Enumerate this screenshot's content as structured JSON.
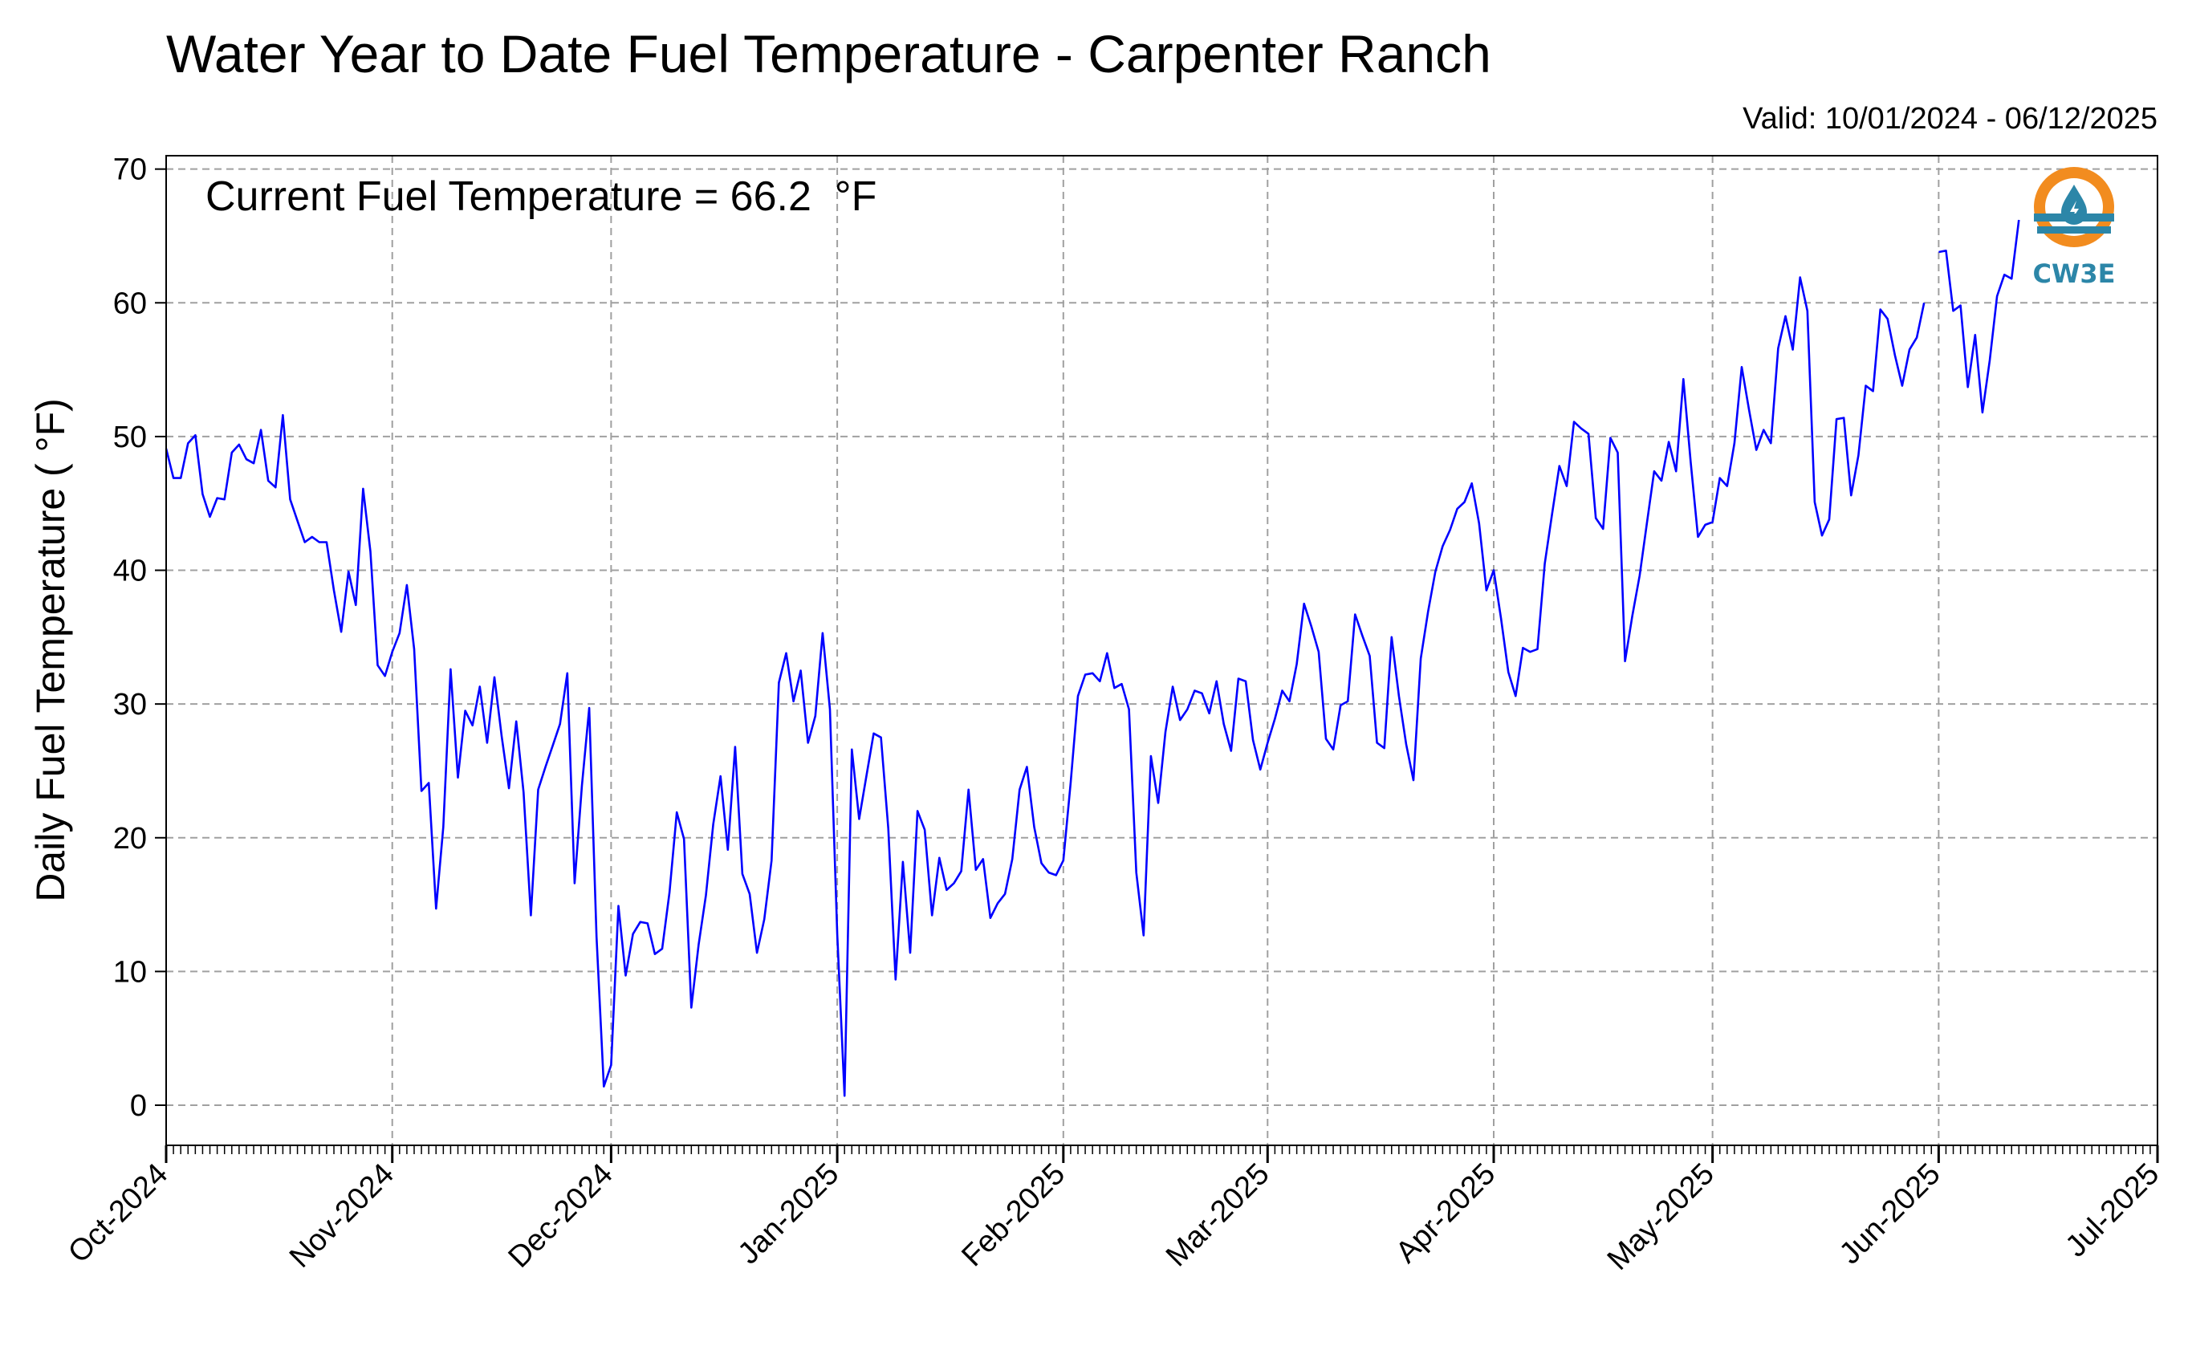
{
  "title": "Water Year to Date Fuel Temperature - Carpenter Ranch",
  "valid_label": "Valid: 10/01/2024 - 06/12/2025",
  "annotation": "Current Fuel Temperature = 66.2  °F",
  "logo": {
    "text": "CW3E",
    "colors": {
      "ring": "#f28c1f",
      "wave": "#2c86a8",
      "drop": "#2c86a8"
    }
  },
  "colors": {
    "line": "#0000ff",
    "grid": "#a0a0a0",
    "axis": "#000000"
  },
  "chart_data": {
    "type": "line",
    "title": "Water Year to Date Fuel Temperature - Carpenter Ranch",
    "xlabel": "",
    "ylabel": "Daily Fuel Temperature ( °F)",
    "xlim": [
      "2024-10-01",
      "2025-07-01"
    ],
    "ylim": [
      -3,
      71
    ],
    "y_ticks": [
      0,
      10,
      20,
      30,
      40,
      50,
      60,
      70
    ],
    "x_tick_labels": [
      "Oct-2024",
      "Nov-2024",
      "Dec-2024",
      "Jan-2025",
      "Feb-2025",
      "Mar-2025",
      "Apr-2025",
      "May-2025",
      "Jun-2025",
      "Jul-2025"
    ],
    "x_ticks": [
      "2024-10-01",
      "2024-11-01",
      "2024-12-01",
      "2025-01-01",
      "2025-02-01",
      "2025-03-01",
      "2025-04-01",
      "2025-05-01",
      "2025-06-01",
      "2025-07-01"
    ],
    "grid": true,
    "series": [
      {
        "start_date": "2024-10-01",
        "values": [
          49.1,
          46.9,
          46.9,
          49.5,
          50.1,
          45.7,
          44.0,
          45.4,
          45.3,
          48.8,
          49.4,
          48.3,
          48.0,
          50.5,
          46.7,
          46.2,
          51.6,
          45.3,
          43.7,
          42.1,
          42.5,
          42.1,
          42.1,
          38.5,
          35.4,
          39.9,
          37.4,
          46.1,
          41.4,
          32.9,
          32.1,
          33.9,
          35.3,
          38.9,
          34.1,
          23.5,
          24.1,
          14.7,
          20.8,
          32.6,
          24.5,
          29.5,
          28.4,
          31.3,
          27.1,
          32.0,
          27.6,
          23.7,
          28.7,
          23.4,
          14.2,
          23.6,
          25.3,
          26.9,
          28.5,
          32.3,
          16.6,
          23.9,
          29.7,
          12.6,
          1.4,
          3.0,
          14.9,
          9.7,
          12.8,
          13.7,
          13.6,
          11.3,
          11.7,
          15.9,
          21.9,
          19.9,
          7.3,
          12.0,
          15.7,
          21.0,
          24.6,
          19.1,
          26.8,
          17.3,
          15.8,
          11.4,
          13.9,
          18.3,
          31.6,
          33.8,
          30.2,
          32.5,
          27.1,
          29.1,
          35.3,
          29.6,
          12.8,
          0.7,
          26.6,
          21.4,
          24.6,
          27.8,
          27.5,
          20.7,
          9.4,
          18.2,
          11.4,
          22.0,
          20.6,
          14.2,
          18.5,
          16.1,
          16.6,
          17.5,
          23.6,
          17.6,
          18.4,
          14.0,
          15.1,
          15.8,
          18.4,
          23.6,
          25.3,
          20.8,
          18.1,
          17.4,
          17.2,
          18.3,
          24.1,
          30.6,
          32.2,
          32.3,
          31.7,
          33.8,
          31.2,
          31.5,
          29.6,
          17.4,
          12.7,
          26.1,
          22.6,
          27.9,
          31.3,
          28.8,
          29.6,
          31.0,
          30.8,
          29.3,
          31.7,
          28.5,
          26.5,
          31.9,
          31.7,
          27.3,
          25.1,
          27.1,
          28.9,
          31.0,
          30.2,
          33.0,
          37.5,
          35.8,
          33.9,
          27.4,
          26.6,
          29.9,
          30.2,
          36.7,
          35.1,
          33.6,
          27.1,
          26.7,
          35.0,
          30.6,
          27.0,
          24.3,
          33.4,
          36.9,
          39.9,
          41.8,
          43.0,
          44.6,
          45.1,
          46.5,
          43.5,
          38.5,
          40.0,
          36.4,
          32.4,
          30.6,
          34.2,
          33.9,
          34.1,
          40.5,
          44.2,
          47.8,
          46.3,
          51.1,
          50.6,
          50.2,
          43.9,
          43.1,
          49.9,
          48.8,
          33.2,
          36.6,
          39.6,
          43.5,
          47.4,
          46.7,
          49.6,
          47.4,
          54.3,
          48.1,
          42.5,
          43.4,
          43.6,
          46.9,
          46.3,
          49.5,
          55.2,
          52.0,
          49.0,
          50.5,
          49.5,
          56.6,
          59.0,
          56.5,
          61.9,
          59.4,
          45.1,
          42.6,
          43.8,
          51.3,
          51.4,
          45.6,
          48.6,
          53.8,
          53.4,
          59.5,
          58.8,
          56.1,
          53.8,
          56.5,
          57.4,
          60.0,
          null,
          63.8,
          63.9,
          59.4,
          59.8,
          53.7,
          57.6,
          51.8,
          55.7,
          60.5,
          62.1,
          61.8,
          66.2
        ]
      }
    ]
  }
}
